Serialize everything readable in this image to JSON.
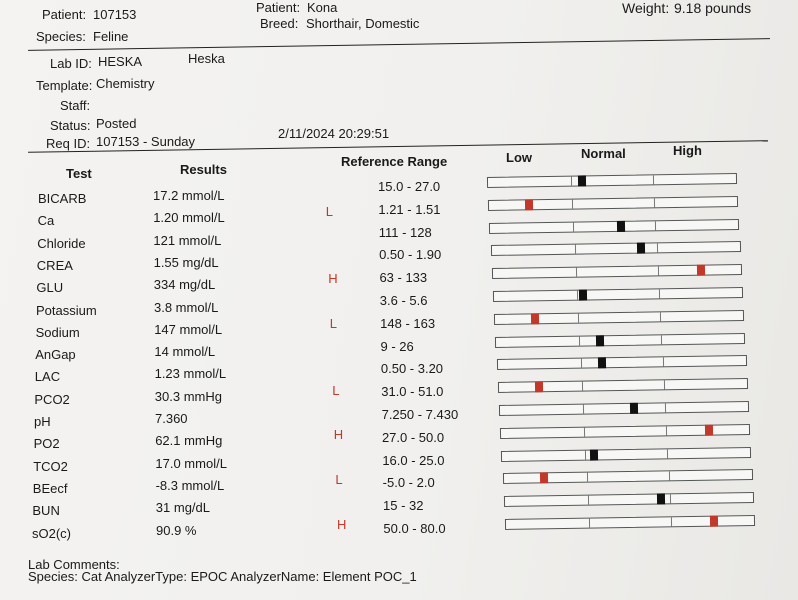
{
  "header": {
    "patient_id_label": "Patient:",
    "patient_id": "107153",
    "species_label": "Species:",
    "species": "Feline",
    "patient_name_label": "Patient:",
    "patient_name": "Kona",
    "breed_label": "Breed:",
    "breed": "Shorthair, Domestic",
    "weight_label": "Weight:",
    "weight": "9.18 pounds"
  },
  "info": {
    "lab_id_label": "Lab ID:",
    "lab_id": "HESKA",
    "lab_name": "Heska",
    "template_label": "Template:",
    "template": "Chemistry",
    "staff_label": "Staff:",
    "status_label": "Status:",
    "status": "Posted",
    "req_id_label": "Req ID:",
    "req_id": "107153 - Sunday",
    "datetime": "2/11/2024 20:29:51"
  },
  "columns": {
    "test": "Test",
    "results": "Results",
    "reference": "Reference Range",
    "low": "Low",
    "normal": "Normal",
    "high": "High"
  },
  "rows": [
    {
      "test": "BICARB",
      "result": "17.2 mmol/L",
      "flag": "",
      "range": "15.0 - 27.0",
      "level": 0.38,
      "status": "normal"
    },
    {
      "test": "Ca",
      "result": "1.20 mmol/L",
      "flag": "L",
      "range": "1.21 - 1.51",
      "level": 0.16,
      "status": "abnormal"
    },
    {
      "test": "Chloride",
      "result": "121 mmol/L",
      "flag": "",
      "range": "111 - 128",
      "level": 0.53,
      "status": "normal"
    },
    {
      "test": "CREA",
      "result": "1.55 mg/dL",
      "flag": "",
      "range": "0.50 - 1.90",
      "level": 0.6,
      "status": "normal"
    },
    {
      "test": "GLU",
      "result": "334 mg/dL",
      "flag": "H",
      "range": "63 - 133",
      "level": 0.84,
      "status": "abnormal"
    },
    {
      "test": "Potassium",
      "result": "3.8 mmol/L",
      "flag": "",
      "range": "3.6 - 5.6",
      "level": 0.36,
      "status": "normal"
    },
    {
      "test": "Sodium",
      "result": "147 mmol/L",
      "flag": "L",
      "range": "148 - 163",
      "level": 0.16,
      "status": "abnormal"
    },
    {
      "test": "AnGap",
      "result": "14 mmol/L",
      "flag": "",
      "range": "9 - 26",
      "level": 0.42,
      "status": "normal"
    },
    {
      "test": "LAC",
      "result": "1.23 mmol/L",
      "flag": "",
      "range": "0.50 - 3.20",
      "level": 0.42,
      "status": "normal"
    },
    {
      "test": "PCO2",
      "result": "30.3 mmHg",
      "flag": "L",
      "range": "31.0 - 51.0",
      "level": 0.16,
      "status": "abnormal"
    },
    {
      "test": "pH",
      "result": "7.360",
      "flag": "",
      "range": "7.250 - 7.430",
      "level": 0.54,
      "status": "normal"
    },
    {
      "test": "PO2",
      "result": "62.1 mmHg",
      "flag": "H",
      "range": "27.0 - 50.0",
      "level": 0.84,
      "status": "abnormal"
    },
    {
      "test": "TCO2",
      "result": "17.0 mmol/L",
      "flag": "",
      "range": "16.0 - 25.0",
      "level": 0.37,
      "status": "normal"
    },
    {
      "test": "BEecf",
      "result": "-8.3 mmol/L",
      "flag": "L",
      "range": "-5.0 - 2.0",
      "level": 0.16,
      "status": "abnormal"
    },
    {
      "test": "BUN",
      "result": "31 mg/dL",
      "flag": "",
      "range": "15 - 32",
      "level": 0.63,
      "status": "normal"
    },
    {
      "test": "sO2(c)",
      "result": "90.9 %",
      "flag": "H",
      "range": "50.0 - 80.0",
      "level": 0.84,
      "status": "abnormal"
    }
  ],
  "footer": {
    "comments_label": "Lab Comments:",
    "species_line": "Species: Cat AnalyzerType: EPOC AnalyzerName: Element POC_1"
  },
  "colors": {
    "normal_marker": "#111111",
    "abnormal_marker": "#c0392b"
  }
}
